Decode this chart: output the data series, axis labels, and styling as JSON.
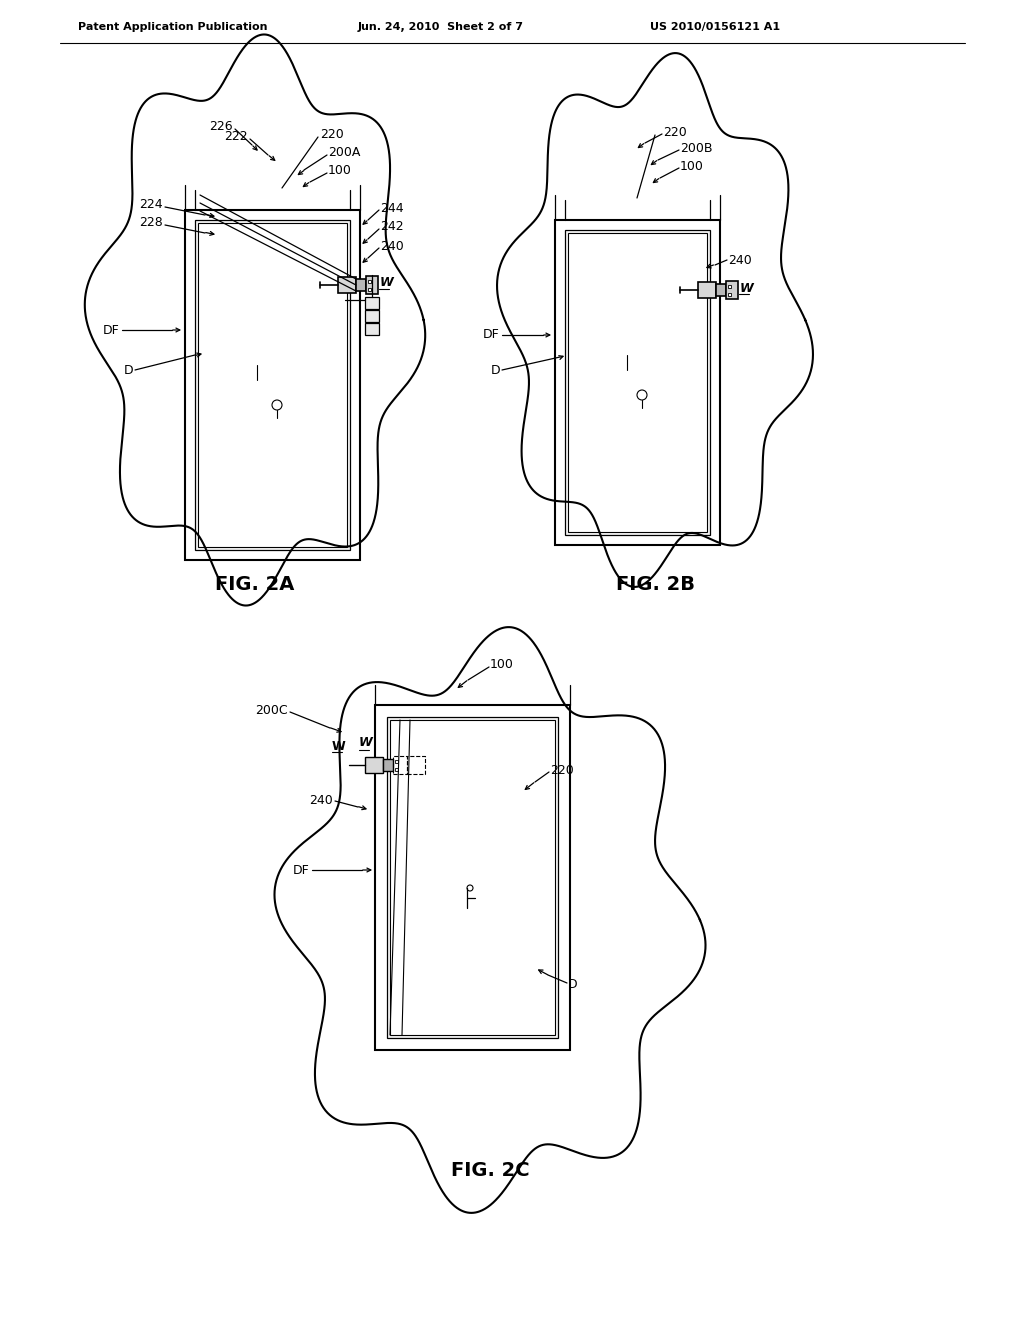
{
  "bg_color": "#ffffff",
  "header_left": "Patent Application Publication",
  "header_center": "Jun. 24, 2010  Sheet 2 of 7",
  "header_right": "US 2010/0156121 A1",
  "fig2a_label": "FIG. 2A",
  "fig2b_label": "FIG. 2B",
  "fig2c_label": "FIG. 2C",
  "line_color": "#000000",
  "lw": 1.5,
  "tlw": 0.9
}
